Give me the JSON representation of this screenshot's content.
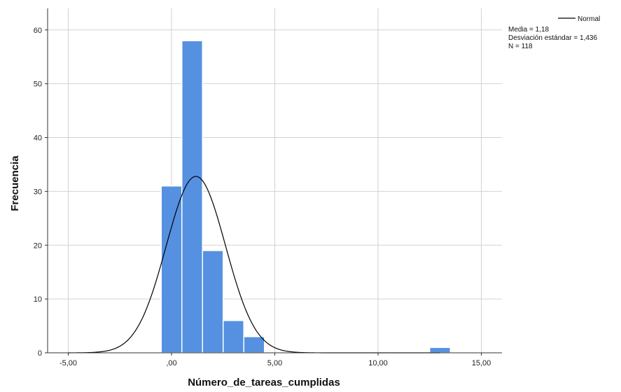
{
  "chart_data": {
    "type": "bar",
    "subtype": "histogram",
    "xlabel": "Número_de_tareas_cumplidas",
    "ylabel": "Frecuencia",
    "xlim": [
      -6,
      16
    ],
    "ylim": [
      0,
      64
    ],
    "x_ticks": [
      -5,
      0,
      5,
      10,
      15
    ],
    "x_tick_labels": [
      "-5,00",
      ",00",
      "5,00",
      "10,00",
      "15,00"
    ],
    "y_ticks": [
      0,
      10,
      20,
      30,
      40,
      50,
      60
    ],
    "y_tick_labels": [
      "0",
      "10",
      "20",
      "30",
      "40",
      "50",
      "60"
    ],
    "grid": true,
    "bins": [
      {
        "x0": -0.5,
        "x1": 0.5,
        "value": 31
      },
      {
        "x0": 0.5,
        "x1": 1.5,
        "value": 58
      },
      {
        "x0": 1.5,
        "x1": 2.5,
        "value": 19
      },
      {
        "x0": 2.5,
        "x1": 3.5,
        "value": 6
      },
      {
        "x0": 3.5,
        "x1": 4.5,
        "value": 3
      },
      {
        "x0": 12.5,
        "x1": 13.5,
        "value": 1
      }
    ],
    "normal_curve": {
      "mean": 1.18,
      "sd": 1.436,
      "n": 118,
      "bin_width": 1
    },
    "bar_color": "#5591e0",
    "curve_color": "#000000",
    "legend": {
      "position": "top-right",
      "line_label": "Normal",
      "stats": [
        "Media = 1,18",
        "Desviación estándar = 1,436",
        "N = 118"
      ]
    }
  }
}
